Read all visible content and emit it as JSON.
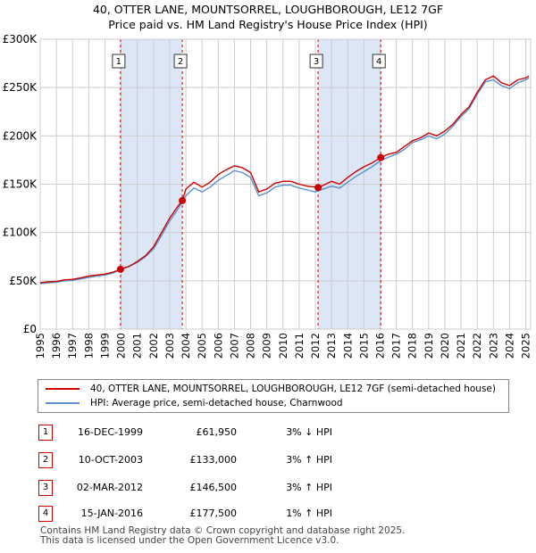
{
  "title_line1": "40, OTTER LANE, MOUNTSORREL, LOUGHBOROUGH, LE12 7GF",
  "title_line2": "Price paid vs. HM Land Registry's House Price Index (HPI)",
  "colors": {
    "property": "#cc0000",
    "hpi": "#5b8fd0",
    "shade": "#dce6f5",
    "grid": "#cccccc"
  },
  "chart_data": {
    "type": "line",
    "xlim": [
      1995,
      2025.3
    ],
    "ylim": [
      0,
      300000
    ],
    "yticks": [
      0,
      50000,
      100000,
      150000,
      200000,
      250000,
      300000
    ],
    "ytick_labels": [
      "£0",
      "£50K",
      "£100K",
      "£150K",
      "£200K",
      "£250K",
      "£300K"
    ],
    "xticks": [
      1995,
      1996,
      1997,
      1998,
      1999,
      2000,
      2001,
      2002,
      2003,
      2004,
      2005,
      2006,
      2007,
      2008,
      2009,
      2010,
      2011,
      2012,
      2013,
      2014,
      2015,
      2016,
      2017,
      2018,
      2019,
      2020,
      2021,
      2022,
      2023,
      2024,
      2025
    ],
    "xtick_labels": [
      "1995",
      "1996",
      "1997",
      "1998",
      "1999",
      "2000",
      "2001",
      "2002",
      "2003",
      "2004",
      "2005",
      "2006",
      "2007",
      "2008",
      "2009",
      "2010",
      "2011",
      "2012",
      "2013",
      "2014",
      "2015",
      "2016",
      "2017",
      "2018",
      "2019",
      "2020",
      "2021",
      "2022",
      "2023",
      "2024",
      "2025"
    ],
    "shaded_ranges": [
      [
        1999.96,
        2003.78
      ],
      [
        2012.17,
        2016.04
      ]
    ],
    "series": [
      {
        "name": "40, OTTER LANE, MOUNTSORREL, LOUGHBOROUGH, LE12 7GF (semi-detached house)",
        "color": "#cc0000",
        "x": [
          1995.0,
          1995.5,
          1996.0,
          1996.5,
          1997.0,
          1997.5,
          1998.0,
          1998.5,
          1999.0,
          1999.5,
          1999.96,
          2000.5,
          2001.0,
          2001.5,
          2002.0,
          2002.5,
          2003.0,
          2003.5,
          2003.78,
          2004.0,
          2004.5,
          2005.0,
          2005.5,
          2006.0,
          2006.5,
          2007.0,
          2007.5,
          2008.0,
          2008.5,
          2009.0,
          2009.5,
          2010.0,
          2010.5,
          2011.0,
          2011.5,
          2012.0,
          2012.17,
          2012.5,
          2013.0,
          2013.5,
          2014.0,
          2014.5,
          2015.0,
          2015.5,
          2016.04,
          2016.5,
          2017.0,
          2017.5,
          2018.0,
          2018.5,
          2019.0,
          2019.5,
          2020.0,
          2020.5,
          2021.0,
          2021.5,
          2022.0,
          2022.5,
          2023.0,
          2023.5,
          2024.0,
          2024.5,
          2025.0,
          2025.2
        ],
        "values": [
          48000,
          49000,
          49500,
          51000,
          51500,
          53000,
          55000,
          56000,
          57000,
          59000,
          61950,
          65000,
          70000,
          76000,
          85000,
          100000,
          115000,
          127000,
          133000,
          145000,
          152000,
          147000,
          152000,
          160000,
          165000,
          169000,
          167000,
          162000,
          142000,
          145000,
          151000,
          153000,
          153000,
          150000,
          148000,
          147000,
          146500,
          149000,
          153000,
          150000,
          157000,
          163000,
          168000,
          172000,
          177500,
          181000,
          183000,
          189000,
          195000,
          198000,
          203000,
          200000,
          205000,
          212000,
          222000,
          230000,
          245000,
          258000,
          262000,
          255000,
          252000,
          258000,
          260000,
          262000
        ]
      },
      {
        "name": "HPI: Average price, semi-detached house, Charnwood",
        "color": "#5b8fd0",
        "x": [
          1995.0,
          1995.5,
          1996.0,
          1996.5,
          1997.0,
          1997.5,
          1998.0,
          1998.5,
          1999.0,
          1999.5,
          2000.0,
          2000.5,
          2001.0,
          2001.5,
          2002.0,
          2002.5,
          2003.0,
          2003.5,
          2004.0,
          2004.5,
          2005.0,
          2005.5,
          2006.0,
          2006.5,
          2007.0,
          2007.5,
          2008.0,
          2008.5,
          2009.0,
          2009.5,
          2010.0,
          2010.5,
          2011.0,
          2011.5,
          2012.0,
          2012.5,
          2013.0,
          2013.5,
          2014.0,
          2014.5,
          2015.0,
          2015.5,
          2016.0,
          2016.5,
          2017.0,
          2017.5,
          2018.0,
          2018.5,
          2019.0,
          2019.5,
          2020.0,
          2020.5,
          2021.0,
          2021.5,
          2022.0,
          2022.5,
          2023.0,
          2023.5,
          2024.0,
          2024.5,
          2025.0,
          2025.2
        ],
        "values": [
          47000,
          48000,
          48500,
          50000,
          50500,
          52000,
          53500,
          55000,
          56000,
          58000,
          62000,
          65000,
          69000,
          75000,
          83000,
          97000,
          112000,
          124000,
          138000,
          146000,
          142000,
          147000,
          154000,
          159000,
          164000,
          162000,
          157000,
          138000,
          141000,
          147000,
          149000,
          149000,
          146000,
          144000,
          142000,
          145000,
          148000,
          146000,
          152000,
          158000,
          163000,
          168000,
          174000,
          178000,
          181000,
          186000,
          193000,
          196000,
          200000,
          197000,
          202000,
          210000,
          220000,
          228000,
          243000,
          256000,
          258000,
          252000,
          249000,
          255000,
          258000,
          260000
        ]
      }
    ],
    "sales": [
      {
        "label": "1",
        "x": 1999.96,
        "value": 61950
      },
      {
        "label": "2",
        "x": 2003.78,
        "value": 133000
      },
      {
        "label": "3",
        "x": 2012.17,
        "value": 146500
      },
      {
        "label": "4",
        "x": 2016.04,
        "value": 177500
      }
    ]
  },
  "legend": {
    "property_label": "40, OTTER LANE, MOUNTSORREL, LOUGHBOROUGH, LE12 7GF (semi-detached house)",
    "hpi_label": "HPI: Average price, semi-detached house, Charnwood"
  },
  "transactions": [
    {
      "num": "1",
      "date": "16-DEC-1999",
      "price": "£61,950",
      "hpi": "3% ↓ HPI"
    },
    {
      "num": "2",
      "date": "10-OCT-2003",
      "price": "£133,000",
      "hpi": "3% ↑ HPI"
    },
    {
      "num": "3",
      "date": "02-MAR-2012",
      "price": "£146,500",
      "hpi": "3% ↑ HPI"
    },
    {
      "num": "4",
      "date": "15-JAN-2016",
      "price": "£177,500",
      "hpi": "1% ↑ HPI"
    }
  ],
  "footer_line1": "Contains HM Land Registry data © Crown copyright and database right 2025.",
  "footer_line2": "This data is licensed under the Open Government Licence v3.0."
}
